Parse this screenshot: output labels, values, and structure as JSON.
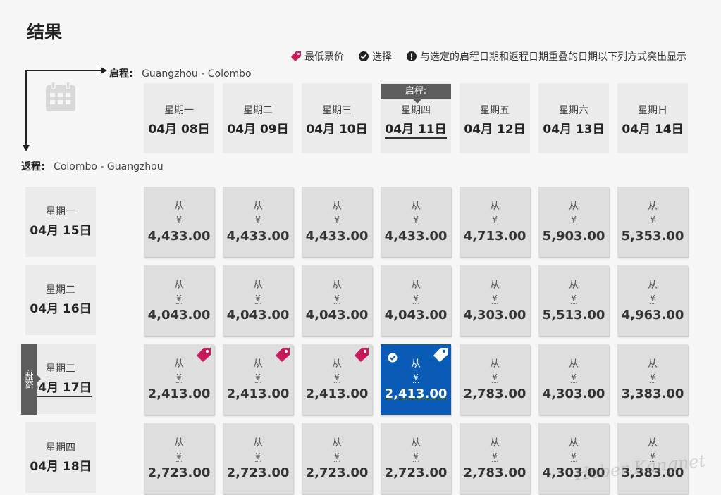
{
  "title": "结果",
  "legend": {
    "lowest": "最低票价",
    "selected": "选择",
    "overlap_note": "与选定的启程日期和返程日期重叠的日期以下列方式突出显示"
  },
  "outbound": {
    "label": "启程:",
    "route": "Guangzhou - Colombo",
    "badge": "启程:"
  },
  "return": {
    "label": "返程:",
    "route": "Colombo - Guangzhou",
    "badge": "返程:"
  },
  "columns": [
    {
      "day": "星期一",
      "date": "04月 08日"
    },
    {
      "day": "星期二",
      "date": "04月 09日"
    },
    {
      "day": "星期三",
      "date": "04月 10日"
    },
    {
      "day": "星期四",
      "date": "04月 11日"
    },
    {
      "day": "星期五",
      "date": "04月 12日"
    },
    {
      "day": "星期六",
      "date": "04月 13日"
    },
    {
      "day": "星期日",
      "date": "04月 14日"
    }
  ],
  "rows": [
    {
      "day": "星期一",
      "date": "04月 15日",
      "prices": [
        "4,433.00",
        "4,433.00",
        "4,433.00",
        "4,433.00",
        "4,713.00",
        "5,903.00",
        "5,353.00"
      ]
    },
    {
      "day": "星期二",
      "date": "04月 16日",
      "prices": [
        "4,043.00",
        "4,043.00",
        "4,043.00",
        "4,043.00",
        "4,303.00",
        "5,513.00",
        "4,963.00"
      ]
    },
    {
      "day": "星期三",
      "date": "04月 17日",
      "prices": [
        "2,413.00",
        "2,413.00",
        "2,413.00",
        "2,413.00",
        "2,783.00",
        "4,303.00",
        "3,383.00"
      ]
    },
    {
      "day": "星期四",
      "date": "04月 18日",
      "prices": [
        "2,723.00",
        "2,723.00",
        "2,723.00",
        "2,723.00",
        "2,783.00",
        "4,303.00",
        "3,383.00"
      ]
    }
  ],
  "from_label": "从",
  "currency": "¥",
  "selected_outbound_index": 3,
  "selected_return_index": 2,
  "lowest_cells": [
    [
      2,
      0
    ],
    [
      2,
      1
    ],
    [
      2,
      2
    ],
    [
      2,
      3
    ]
  ],
  "watermark": "Hober Kangnet",
  "colors": {
    "selected": "#0a5bb5",
    "lowest_tag": "#c8195b",
    "cell": "#dedede",
    "header": "#ebebeb",
    "badge": "#5d5d5d"
  }
}
